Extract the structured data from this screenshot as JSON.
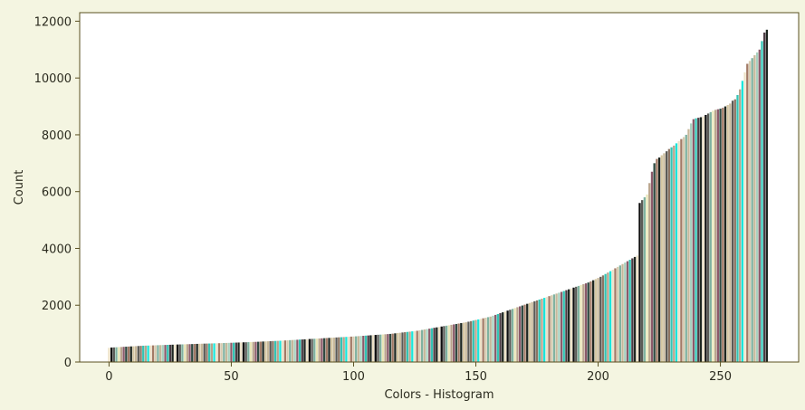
{
  "colors": {
    "page_background": "#f4f5e1",
    "plot_background": "#ffffff",
    "axis": "#5a5020",
    "bar_palette": [
      "#ede2c8",
      "#d8ccb0",
      "#c7b89a",
      "#8d7563",
      "#b9a48c",
      "#2f4a42",
      "#1d2620",
      "#0d0d0d",
      "#7fb2a0",
      "#a8d2c0",
      "#33c4b4",
      "#19e6dc",
      "#a27a66",
      "#d5c7a2",
      "#5a5a56",
      "#e9e6b8",
      "#8b5a6a",
      "#4a3a42"
    ]
  },
  "chart_data": {
    "type": "bar",
    "title": "",
    "xlabel": "Colors - Histogram",
    "ylabel": "Count",
    "xlim": [
      -12,
      282
    ],
    "ylim": [
      0,
      12300
    ],
    "xticks": [
      0,
      50,
      100,
      150,
      200,
      250
    ],
    "yticks": [
      0,
      2000,
      4000,
      6000,
      8000,
      10000,
      12000
    ],
    "grid": false,
    "legend": "none",
    "bar_count": 270,
    "x_start": 0,
    "values": [
      500,
      510,
      515,
      520,
      525,
      530,
      535,
      540,
      545,
      550,
      555,
      560,
      565,
      570,
      575,
      578,
      580,
      583,
      586,
      590,
      593,
      596,
      600,
      602,
      605,
      608,
      611,
      614,
      617,
      620,
      622,
      625,
      628,
      630,
      633,
      636,
      639,
      642,
      645,
      648,
      650,
      652,
      655,
      658,
      660,
      663,
      666,
      669,
      672,
      675,
      678,
      681,
      684,
      687,
      690,
      693,
      696,
      700,
      703,
      707,
      710,
      714,
      718,
      722,
      726,
      730,
      734,
      738,
      742,
      746,
      750,
      755,
      760,
      765,
      770,
      775,
      780,
      785,
      790,
      795,
      800,
      805,
      810,
      815,
      820,
      825,
      830,
      835,
      840,
      845,
      850,
      855,
      860,
      865,
      870,
      875,
      880,
      885,
      890,
      895,
      900,
      906,
      912,
      918,
      924,
      930,
      936,
      942,
      948,
      954,
      960,
      966,
      972,
      978,
      984,
      990,
      1000,
      1010,
      1020,
      1030,
      1040,
      1050,
      1060,
      1070,
      1080,
      1090,
      1100,
      1115,
      1130,
      1145,
      1160,
      1175,
      1190,
      1205,
      1220,
      1235,
      1250,
      1265,
      1280,
      1295,
      1310,
      1325,
      1340,
      1355,
      1370,
      1385,
      1400,
      1420,
      1440,
      1460,
      1480,
      1500,
      1520,
      1540,
      1560,
      1580,
      1600,
      1630,
      1660,
      1690,
      1720,
      1750,
      1780,
      1810,
      1840,
      1870,
      1900,
      1930,
      1960,
      1990,
      2020,
      2050,
      2080,
      2110,
      2140,
      2170,
      2200,
      2230,
      2260,
      2290,
      2320,
      2350,
      2380,
      2410,
      2440,
      2470,
      2500,
      2530,
      2560,
      2590,
      2620,
      2650,
      2680,
      2710,
      2740,
      2770,
      2800,
      2840,
      2880,
      2920,
      2960,
      3000,
      3050,
      3100,
      3150,
      3200,
      3250,
      3300,
      3350,
      3400,
      3450,
      3500,
      3550,
      3600,
      3650,
      3700,
      3750,
      5600,
      5700,
      5800,
      5900,
      6300,
      6700,
      7000,
      7150,
      7200,
      7280,
      7350,
      7420,
      7500,
      7560,
      7620,
      7700,
      7780,
      7850,
      7920,
      8000,
      8200,
      8400,
      8550,
      8580,
      8600,
      8620,
      8650,
      8700,
      8750,
      8800,
      8850,
      8880,
      8900,
      8920,
      8950,
      9000,
      9050,
      9100,
      9200,
      9250,
      9400,
      9600,
      9900,
      10200,
      10500,
      10600,
      10700,
      10800,
      10900,
      11000,
      11300,
      11600,
      11700
    ]
  }
}
